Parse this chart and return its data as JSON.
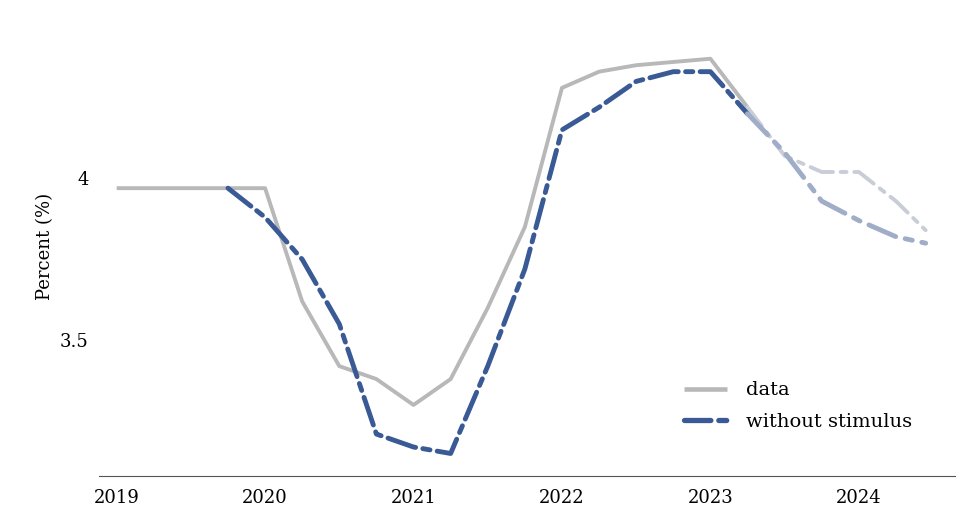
{
  "data_x": [
    2019.0,
    2019.25,
    2019.5,
    2019.75,
    2020.0,
    2020.25,
    2020.5,
    2020.75,
    2021.0,
    2021.25,
    2021.5,
    2021.75,
    2022.0,
    2022.25,
    2022.5,
    2022.75,
    2023.0,
    2023.25
  ],
  "data_y": [
    3.97,
    3.97,
    3.97,
    3.97,
    3.97,
    3.62,
    3.42,
    3.38,
    3.3,
    3.38,
    3.6,
    3.85,
    4.28,
    4.33,
    4.35,
    4.36,
    4.37,
    4.22
  ],
  "data_faded_x": [
    2023.25,
    2023.5,
    2023.75,
    2024.0,
    2024.25,
    2024.45
  ],
  "data_faded_y": [
    4.22,
    4.07,
    4.02,
    4.02,
    3.93,
    3.84
  ],
  "stim_x": [
    2019.75,
    2020.0,
    2020.25,
    2020.5,
    2020.75,
    2021.0,
    2021.25,
    2021.5,
    2021.75,
    2022.0,
    2022.25,
    2022.5,
    2022.75,
    2023.0,
    2023.25
  ],
  "stim_y": [
    3.97,
    3.88,
    3.75,
    3.55,
    3.21,
    3.17,
    3.15,
    3.42,
    3.72,
    4.15,
    4.22,
    4.3,
    4.33,
    4.33,
    4.2
  ],
  "stim_faded_x": [
    2023.25,
    2023.5,
    2023.75,
    2024.0,
    2024.25,
    2024.45
  ],
  "stim_faded_y": [
    4.2,
    4.08,
    3.93,
    3.87,
    3.82,
    3.8
  ],
  "data_color": "#b8b8b8",
  "stim_color": "#3a5a96",
  "stim_faded_color": "#a0adc8",
  "data_faded_color": "#c8cdd8",
  "ylabel": "Percent (%)",
  "xlim": [
    2018.88,
    2024.65
  ],
  "ylim": [
    3.08,
    4.5
  ],
  "yticks": [
    3.5,
    4.0
  ],
  "ytick_labels": [
    "3.5",
    "4"
  ],
  "xticks": [
    2019,
    2020,
    2021,
    2022,
    2023,
    2024
  ],
  "xtick_labels": [
    "2019",
    "2020",
    "2021",
    "2022",
    "2023",
    "2024"
  ],
  "legend_data_label": "data",
  "legend_stim_label": "without stimulus",
  "linewidth": 2.8,
  "background_color": "#ffffff"
}
